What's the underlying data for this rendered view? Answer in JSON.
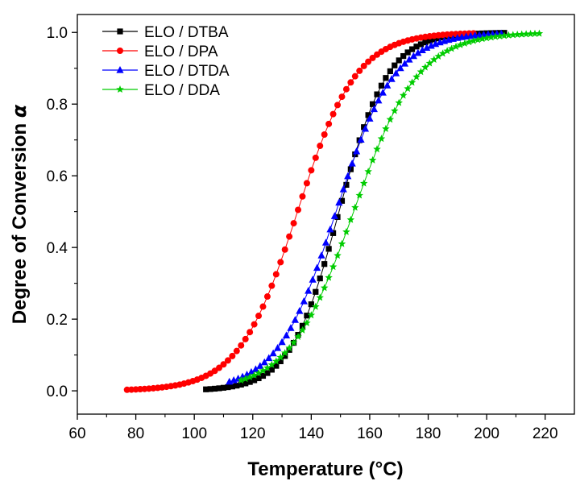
{
  "chart_data": {
    "type": "scatter",
    "title": "",
    "xlabel": "Temperature (°C)",
    "ylabel_main": "Degree of Conversion ",
    "ylabel_symbol": "α",
    "xlim": [
      60,
      230
    ],
    "ylim": [
      -0.065,
      1.05
    ],
    "xticks": [
      60,
      80,
      100,
      120,
      140,
      160,
      180,
      200,
      220
    ],
    "xtick_labels": [
      "60",
      "80",
      "100",
      "120",
      "140",
      "160",
      "180",
      "200",
      "220"
    ],
    "yticks": [
      0.0,
      0.2,
      0.4,
      0.6,
      0.8,
      1.0
    ],
    "ytick_labels": [
      "0.0",
      "0.2",
      "0.4",
      "0.6",
      "0.8",
      "1.0"
    ],
    "grid": false,
    "legend_position": "top-left",
    "series": [
      {
        "name": "ELO / DTBA",
        "color": "#000000",
        "marker": "square",
        "x_start": 104,
        "x_end": 207,
        "midpoint": 149.5,
        "width": 8.3,
        "step": 1.5
      },
      {
        "name": "ELO / DPA",
        "color": "#ff0000",
        "marker": "circle",
        "x_start": 77,
        "x_end": 196,
        "midpoint": 135.3,
        "width": 10.0,
        "step": 1.5
      },
      {
        "name": "ELO / DTDA",
        "color": "#0000ff",
        "marker": "triangle",
        "x_start": 112,
        "x_end": 205,
        "midpoint": 148.5,
        "width": 10.0,
        "step": 1.5
      },
      {
        "name": "ELO / DDA",
        "color": "#00cc00",
        "marker": "star",
        "x_start": 116,
        "x_end": 218,
        "midpoint": 154.5,
        "width": 11.0,
        "step": 1.5
      }
    ]
  }
}
